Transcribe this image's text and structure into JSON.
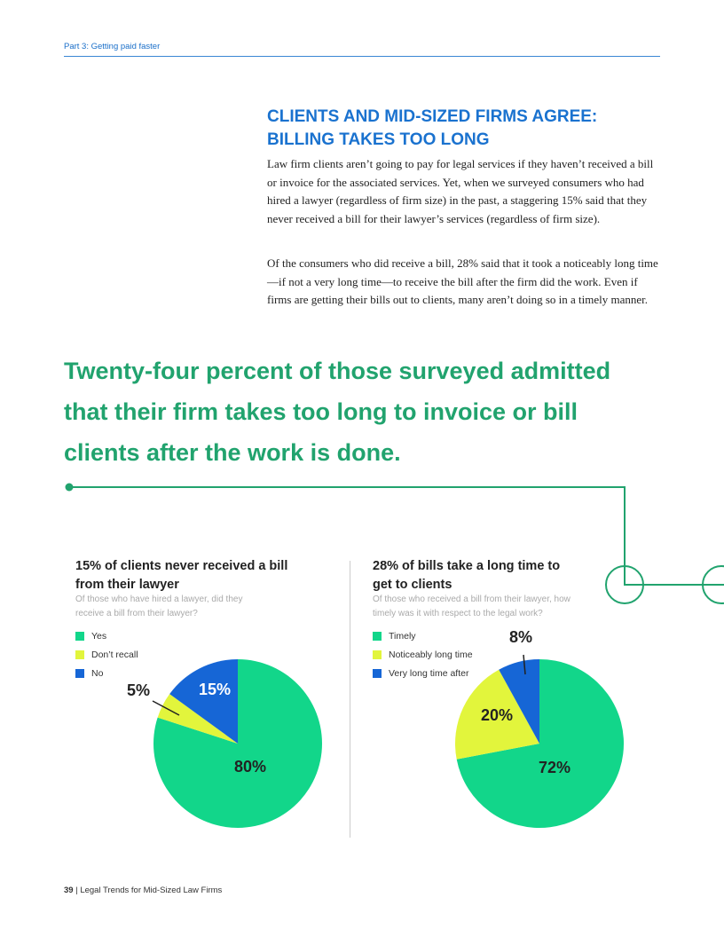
{
  "header": {
    "section": "Part 3: Getting paid faster"
  },
  "article": {
    "heading_line1": "CLIENTS AND MID-SIZED FIRMS AGREE:",
    "heading_line2": "BILLING TAKES TOO LONG",
    "para1": "Law firm clients aren’t going to pay for legal services if they haven’t received a bill or invoice for the associated services. Yet, when we surveyed consumers who had hired a lawyer (regardless of firm size) in the past, a staggering 15% said that they never received a bill for their lawyer’s services (regardless of firm size).",
    "para2": "Of the consumers who did receive a bill, 28% said that it took a noticeably long time—if not a very long time—to receive the bill after the firm did the work. Even if firms are getting their bills out to clients, many aren’t doing so in a timely manner."
  },
  "pullquote": "Twenty-four percent of those surveyed admitted that their firm takes too long to invoice or bill clients after the work is done.",
  "colors": {
    "green": "#12d68a",
    "yellow": "#e2f53c",
    "blue": "#1666d6",
    "accent_green": "#21a36e",
    "accent_blue": "#1a72cf"
  },
  "chart_data": [
    {
      "type": "pie",
      "title": "15% of clients never received a bill from their lawyer",
      "subtitle": "Of those who have hired a lawyer, did they receive a bill from their lawyer?",
      "legend_position": "top-left",
      "categories": [
        "Yes",
        "Don’t recall",
        "No"
      ],
      "values": [
        80,
        5,
        15
      ],
      "labels": [
        "80%",
        "5%",
        "15%"
      ],
      "colors": [
        "#12d68a",
        "#e2f53c",
        "#1666d6"
      ]
    },
    {
      "type": "pie",
      "title": "28% of bills take a long time to get to clients",
      "subtitle": "Of those who received a bill from their lawyer, how timely was it with respect to the legal work?",
      "legend_position": "top-left",
      "categories": [
        "Timely",
        "Noticeably long time",
        "Very long time after"
      ],
      "values": [
        72,
        20,
        8
      ],
      "labels": [
        "72%",
        "20%",
        "8%"
      ],
      "colors": [
        "#12d68a",
        "#e2f53c",
        "#1666d6"
      ]
    }
  ],
  "footer": {
    "page": "39",
    "separator": "|",
    "title": "Legal Trends for Mid-Sized Law Firms"
  }
}
